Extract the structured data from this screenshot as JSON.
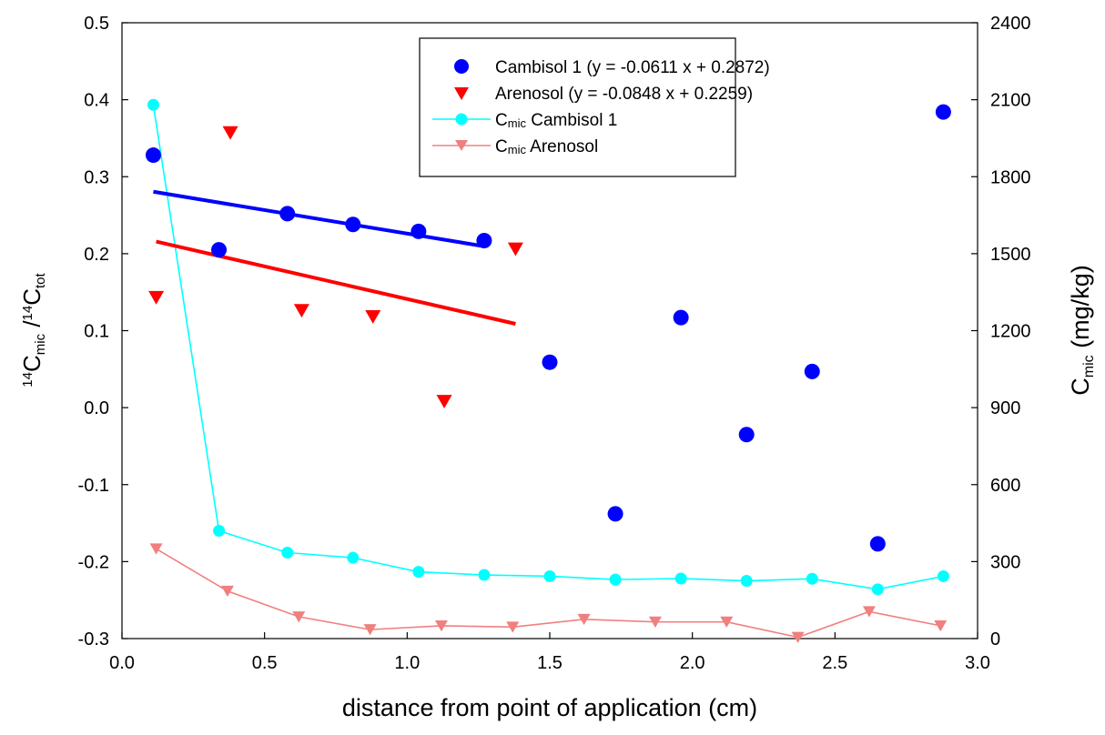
{
  "chart_data": {
    "type": "scatter",
    "xlabel": "distance from point of application (cm)",
    "ylabel_left": {
      "sup": "14",
      "main": "C",
      "sub": "mic",
      "sep": " /",
      "sup2": "14",
      "main2": "C",
      "sub2": "tot"
    },
    "ylabel_right": {
      "main": "C",
      "sub": "mic",
      "rest": " (mg/kg)"
    },
    "xlim": [
      0,
      3
    ],
    "ylim_left": [
      -0.3,
      0.5
    ],
    "ylim_right": [
      0,
      2400
    ],
    "x_ticks": [
      0.0,
      0.5,
      1.0,
      1.5,
      2.0,
      2.5,
      3.0
    ],
    "x_tick_labels": [
      "0.0",
      "0.5",
      "1.0",
      "1.5",
      "2.0",
      "2.5",
      "3.0"
    ],
    "y_left_ticks": [
      -0.3,
      -0.2,
      -0.1,
      0.0,
      0.1,
      0.2,
      0.3,
      0.4,
      0.5
    ],
    "y_left_tick_labels": [
      "-0.3",
      "-0.2",
      "-0.1",
      "0.0",
      "0.1",
      "0.2",
      "0.3",
      "0.4",
      "0.5"
    ],
    "y_right_ticks": [
      0,
      300,
      600,
      900,
      1200,
      1500,
      1800,
      2100,
      2400
    ],
    "y_right_tick_labels": [
      "0",
      "300",
      "600",
      "900",
      "1200",
      "1500",
      "1800",
      "2100",
      "2400"
    ],
    "legend_position": "top-center",
    "legend": [
      {
        "series": "cambisol",
        "label": "Cambisol 1 (y = -0.0611 x + 0.2872)"
      },
      {
        "series": "arenosol",
        "label": "Arenosol (y = -0.0848 x + 0.2259)"
      },
      {
        "series": "cmic_cambisol",
        "label_main": "C",
        "label_sub": "mic",
        "label_rest": " Cambisol 1"
      },
      {
        "series": "cmic_arenosol",
        "label_main": "C",
        "label_sub": "mic",
        "label_rest": " Arenosol"
      }
    ],
    "series": [
      {
        "id": "cambisol",
        "axis": "left",
        "marker": "circle",
        "color": "#0000ff",
        "x": [
          0.11,
          0.34,
          0.58,
          0.81,
          1.04,
          1.27,
          1.5,
          1.73,
          1.96,
          2.19,
          2.42,
          2.65,
          2.88
        ],
        "y": [
          0.328,
          0.205,
          0.252,
          0.238,
          0.229,
          0.217,
          0.059,
          -0.138,
          0.117,
          -0.035,
          0.047,
          -0.177,
          0.384
        ]
      },
      {
        "id": "arenosol",
        "axis": "left",
        "marker": "triangle-down",
        "color": "#ff0000",
        "x": [
          0.12,
          0.38,
          0.63,
          0.88,
          1.13,
          1.38
        ],
        "y": [
          0.143,
          0.357,
          0.126,
          0.118,
          0.008,
          0.206
        ]
      },
      {
        "id": "cmic_cambisol",
        "axis": "right",
        "marker": "circle",
        "line": true,
        "color": "#00ffff",
        "x": [
          0.11,
          0.34,
          0.58,
          0.81,
          1.04,
          1.27,
          1.5,
          1.73,
          1.96,
          2.19,
          2.42,
          2.65,
          2.88
        ],
        "y": [
          2080,
          420,
          335,
          315,
          260,
          248,
          243,
          230,
          234,
          225,
          233,
          192,
          243
        ]
      },
      {
        "id": "cmic_arenosol",
        "axis": "right",
        "marker": "triangle-down",
        "line": true,
        "color": "#f08080",
        "x": [
          0.12,
          0.37,
          0.62,
          0.87,
          1.12,
          1.37,
          1.62,
          1.87,
          2.12,
          2.37,
          2.62,
          2.87
        ],
        "y": [
          350,
          185,
          85,
          35,
          50,
          45,
          75,
          65,
          65,
          5,
          105,
          50
        ]
      }
    ],
    "regressions": [
      {
        "id": "fit_cambisol",
        "color": "#0000ff",
        "x": [
          0.11,
          1.27
        ],
        "slope": -0.0611,
        "intercept": 0.2872
      },
      {
        "id": "fit_arenosol",
        "color": "#ff0000",
        "x": [
          0.12,
          1.38
        ],
        "slope": -0.0848,
        "intercept": 0.2259
      }
    ]
  }
}
